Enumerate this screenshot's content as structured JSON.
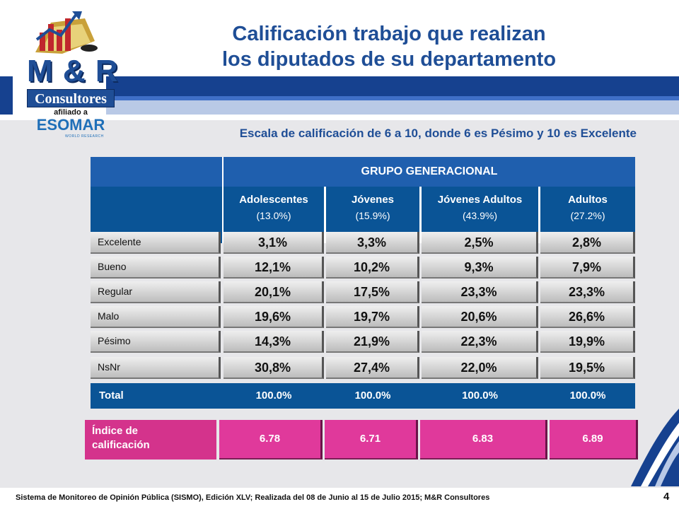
{
  "header": {
    "title_line1": "Calificación trabajo que realizan",
    "title_line2": "los diputados de su departamento"
  },
  "logo": {
    "brand": "M & R",
    "name": "Consultores",
    "afiliado": "afiliado a",
    "esomar": "ESOMAR",
    "esomar_tag": "WORLD RESEARCH"
  },
  "subtitle": "Escala de calificación de 6 a 10, donde 6 es Pésimo y 10 es Excelente",
  "table": {
    "group_header": "GRUPO GENERACIONAL",
    "columns": [
      {
        "name": "Adolescentes",
        "pct": "(13.0%)"
      },
      {
        "name": "Jóvenes",
        "pct": "(15.9%)"
      },
      {
        "name": "Jóvenes Adultos",
        "pct": "(43.9%)"
      },
      {
        "name": "Adultos",
        "pct": "(27.2%)"
      }
    ],
    "rows": [
      {
        "label": "Excelente",
        "values": [
          "3,1%",
          "3,3%",
          "2,5%",
          "2,8%"
        ]
      },
      {
        "label": "Bueno",
        "values": [
          "12,1%",
          "10,2%",
          "9,3%",
          "7,9%"
        ]
      },
      {
        "label": "Regular",
        "values": [
          "20,1%",
          "17,5%",
          "23,3%",
          "23,3%"
        ]
      },
      {
        "label": "Malo",
        "values": [
          "19,6%",
          "19,7%",
          "20,6%",
          "26,6%"
        ]
      },
      {
        "label": "Pésimo",
        "values": [
          "14,3%",
          "21,9%",
          "22,3%",
          "19,9%"
        ]
      },
      {
        "label": "NsNr",
        "values": [
          "30,8%",
          "27,4%",
          "22,0%",
          "19,5%"
        ]
      }
    ],
    "total": {
      "label": "Total",
      "values": [
        "100.0%",
        "100.0%",
        "100.0%",
        "100.0%"
      ]
    }
  },
  "index": {
    "label_line1": "Índice de",
    "label_line2": "calificación",
    "values": [
      "6.78",
      "6.71",
      "6.83",
      "6.89"
    ]
  },
  "footer": {
    "text": "Sistema de Monitoreo de Opinión Pública (SISMO), Edición XLV; Realizada del 08 de Junio al 15 de Julio 2015; M&R Consultores",
    "page_number": "4"
  },
  "colors": {
    "title_blue": "#1f4e96",
    "header_blue": "#0a5496",
    "index_pink": "#e0399b"
  }
}
